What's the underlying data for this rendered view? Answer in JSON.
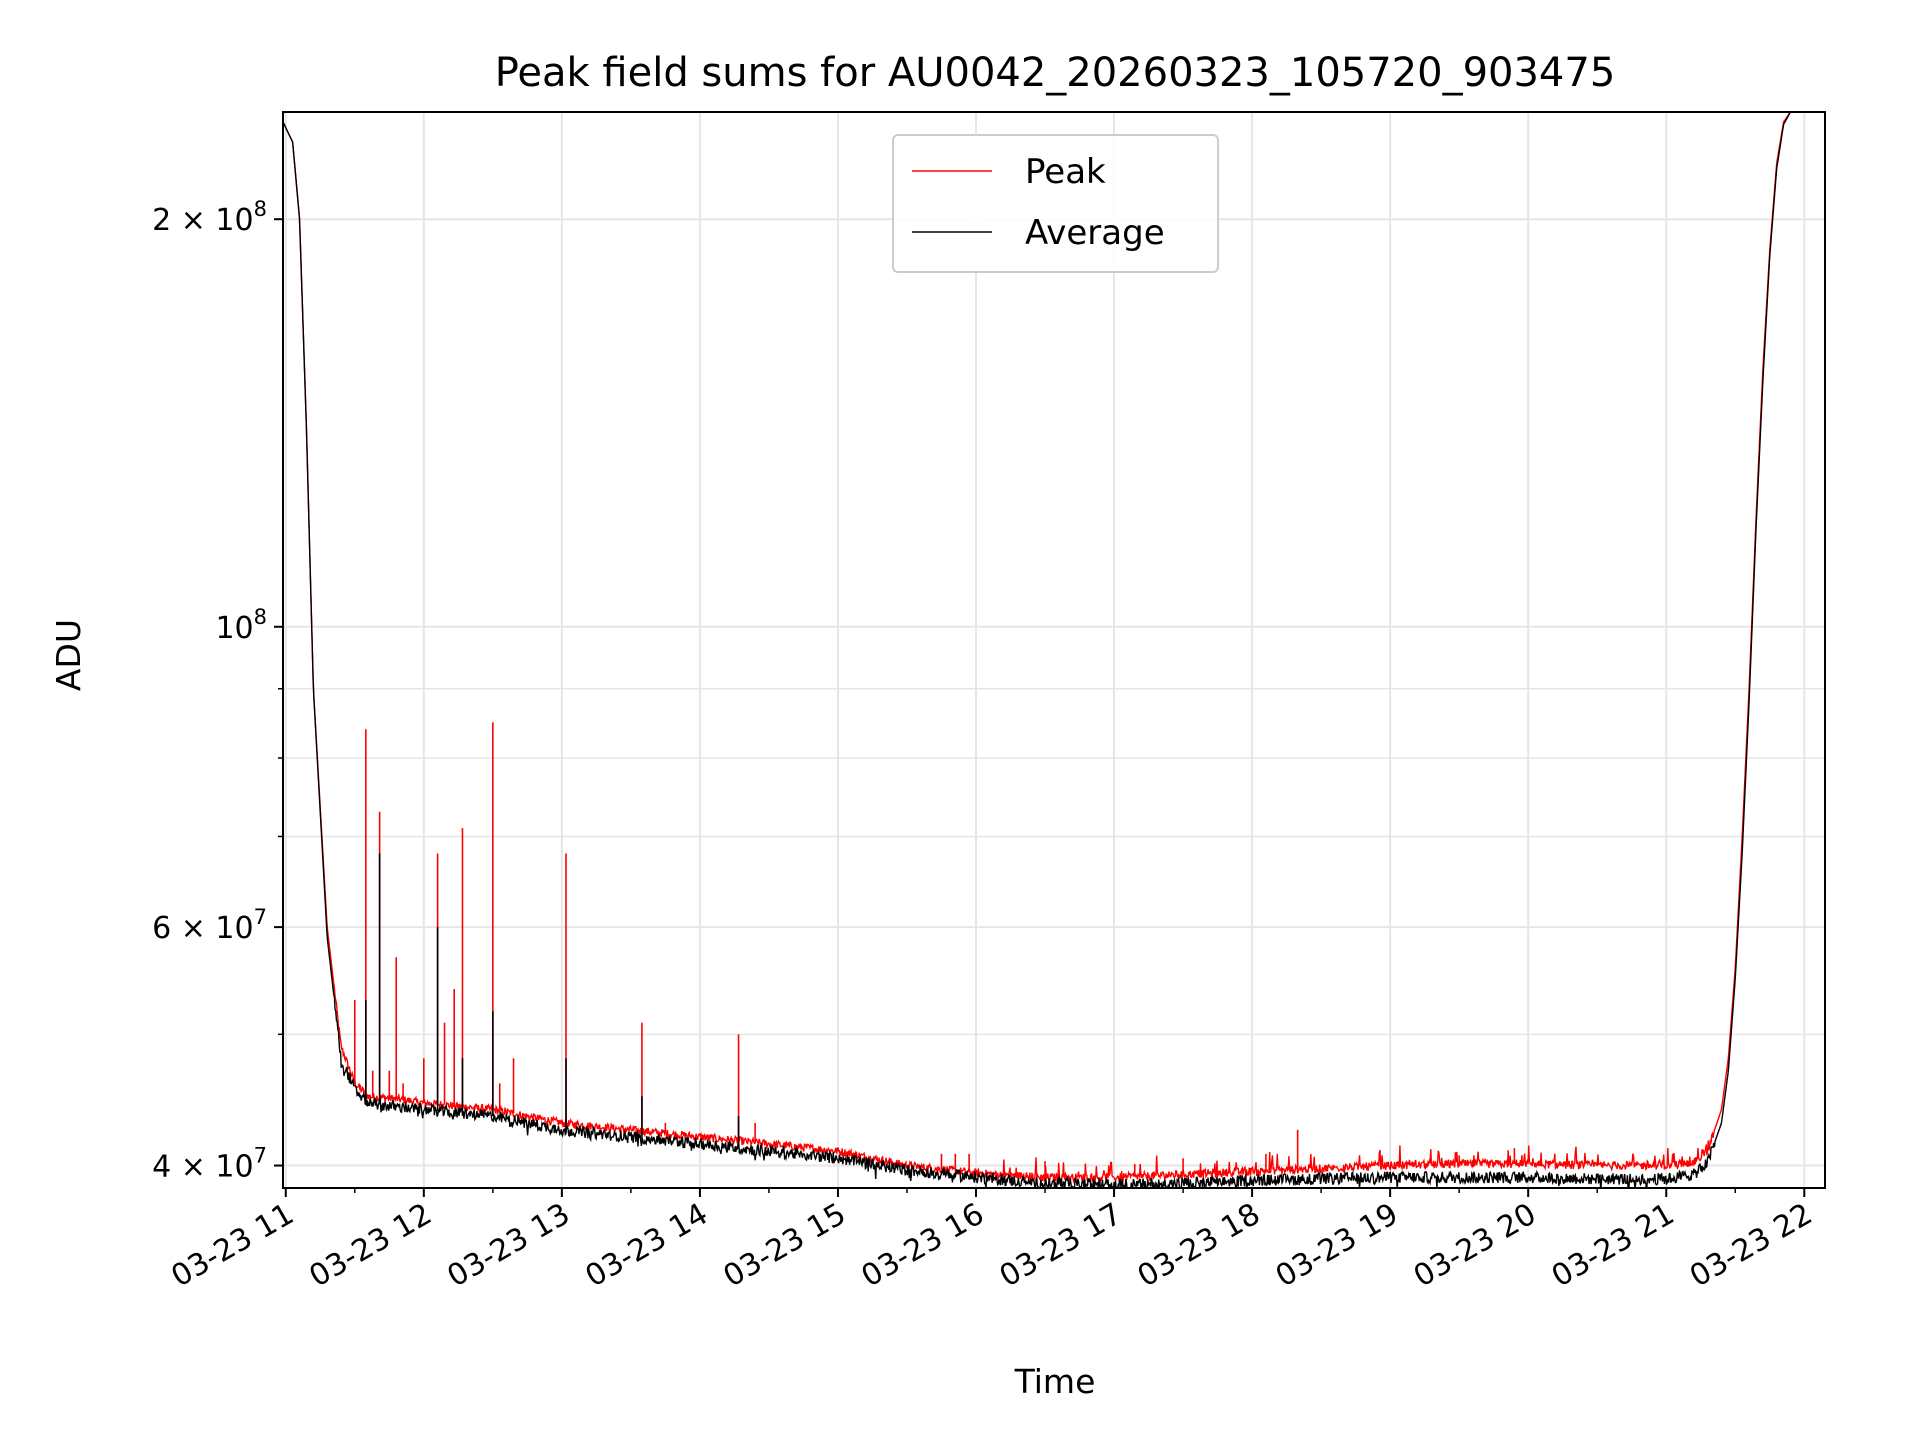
{
  "chart_data": {
    "type": "line",
    "title": "Peak field sums for AU0042_20260323_105720_903475",
    "xlabel": "Time",
    "ylabel": "ADU",
    "yscale": "log",
    "grid": true,
    "legend_position": "top-center",
    "x_ticks": [
      "03-23 11",
      "03-23 12",
      "03-23 13",
      "03-23 14",
      "03-23 15",
      "03-23 16",
      "03-23 17",
      "03-23 18",
      "03-23 19",
      "03-23 20",
      "03-23 21",
      "03-23 22"
    ],
    "y_ticks": [
      {
        "value": 40000000,
        "mantissa": "4",
        "exponent": "7"
      },
      {
        "value": 60000000,
        "mantissa": "6",
        "exponent": "7"
      },
      {
        "value": 100000000,
        "mantissa": "",
        "exponent": "8"
      },
      {
        "value": 200000000,
        "mantissa": "2",
        "exponent": "8"
      }
    ],
    "y_minor_ticks": [
      50000000,
      70000000,
      80000000,
      90000000
    ],
    "xlim_hours": [
      10.98,
      22.15
    ],
    "ylim": [
      38500000,
      240000000
    ],
    "series": [
      {
        "name": "Peak",
        "color": "#ff0000",
        "x_hours": [
          10.98,
          11.05,
          11.1,
          11.15,
          11.2,
          11.3,
          11.4,
          11.5,
          11.6,
          11.8,
          12.0,
          12.5,
          13.0,
          13.5,
          14.0,
          14.5,
          15.0,
          15.5,
          16.0,
          16.5,
          17.0,
          17.5,
          18.0,
          18.5,
          19.0,
          19.5,
          20.0,
          20.5,
          21.0,
          21.2,
          21.3,
          21.4,
          21.45,
          21.5,
          21.55,
          21.6,
          21.65,
          21.7,
          21.75,
          21.8,
          21.85,
          21.9
        ],
        "values": [
          236000000,
          228000000,
          200000000,
          140000000,
          90000000,
          60000000,
          49000000,
          46000000,
          45000000,
          44800000,
          44500000,
          44000000,
          43000000,
          42500000,
          42000000,
          41500000,
          41000000,
          40000000,
          39500000,
          39200000,
          39200000,
          39400000,
          39600000,
          39800000,
          40000000,
          40100000,
          40100000,
          40000000,
          40000000,
          40200000,
          41000000,
          44000000,
          48000000,
          56000000,
          70000000,
          90000000,
          120000000,
          155000000,
          190000000,
          220000000,
          236000000,
          240000000
        ],
        "spikes": [
          {
            "x_hours": 11.5,
            "value": 53000000
          },
          {
            "x_hours": 11.58,
            "value": 84000000
          },
          {
            "x_hours": 11.63,
            "value": 47000000
          },
          {
            "x_hours": 11.68,
            "value": 73000000
          },
          {
            "x_hours": 11.75,
            "value": 47000000
          },
          {
            "x_hours": 11.8,
            "value": 57000000
          },
          {
            "x_hours": 11.85,
            "value": 46000000
          },
          {
            "x_hours": 12.0,
            "value": 48000000
          },
          {
            "x_hours": 12.1,
            "value": 68000000
          },
          {
            "x_hours": 12.15,
            "value": 51000000
          },
          {
            "x_hours": 12.22,
            "value": 54000000
          },
          {
            "x_hours": 12.28,
            "value": 71000000
          },
          {
            "x_hours": 12.5,
            "value": 85000000
          },
          {
            "x_hours": 12.55,
            "value": 46000000
          },
          {
            "x_hours": 12.65,
            "value": 48000000
          },
          {
            "x_hours": 13.03,
            "value": 68000000
          },
          {
            "x_hours": 13.1,
            "value": 43000000
          },
          {
            "x_hours": 13.45,
            "value": 42000000
          },
          {
            "x_hours": 13.58,
            "value": 51000000
          },
          {
            "x_hours": 13.75,
            "value": 43000000
          },
          {
            "x_hours": 14.28,
            "value": 50000000
          },
          {
            "x_hours": 14.4,
            "value": 43000000
          },
          {
            "x_hours": 15.75,
            "value": 40800000
          },
          {
            "x_hours": 15.85,
            "value": 40800000
          },
          {
            "x_hours": 15.95,
            "value": 40800000
          },
          {
            "x_hours": 16.5,
            "value": 40300000
          },
          {
            "x_hours": 17.15,
            "value": 40100000
          },
          {
            "x_hours": 17.5,
            "value": 40500000
          },
          {
            "x_hours": 18.1,
            "value": 40800000
          },
          {
            "x_hours": 18.33,
            "value": 42500000
          },
          {
            "x_hours": 19.5,
            "value": 40700000
          },
          {
            "x_hours": 19.9,
            "value": 41200000
          }
        ]
      },
      {
        "name": "Average",
        "color": "#000000",
        "x_hours": [
          10.98,
          11.05,
          11.1,
          11.15,
          11.2,
          11.3,
          11.4,
          11.5,
          11.6,
          11.8,
          12.0,
          12.5,
          13.0,
          13.5,
          14.0,
          14.5,
          15.0,
          15.5,
          16.0,
          16.5,
          17.0,
          17.5,
          18.0,
          18.5,
          19.0,
          19.5,
          20.0,
          20.5,
          21.0,
          21.2,
          21.3,
          21.4,
          21.45,
          21.5,
          21.55,
          21.6,
          21.65,
          21.7,
          21.75,
          21.8,
          21.85,
          21.9
        ],
        "values": [
          236000000,
          228000000,
          200000000,
          140000000,
          90000000,
          59000000,
          48000000,
          45500000,
          44500000,
          44200000,
          44000000,
          43500000,
          42500000,
          42000000,
          41500000,
          41000000,
          40500000,
          39700000,
          39200000,
          38800000,
          38700000,
          38800000,
          39000000,
          39100000,
          39200000,
          39200000,
          39200000,
          39100000,
          39100000,
          39400000,
          40200000,
          43000000,
          47000000,
          55000000,
          68000000,
          88000000,
          118000000,
          152000000,
          188000000,
          218000000,
          235000000,
          240000000
        ],
        "spikes": [
          {
            "x_hours": 11.58,
            "value": 53000000
          },
          {
            "x_hours": 11.68,
            "value": 68000000
          },
          {
            "x_hours": 12.1,
            "value": 60000000
          },
          {
            "x_hours": 12.28,
            "value": 48000000
          },
          {
            "x_hours": 12.5,
            "value": 52000000
          },
          {
            "x_hours": 13.03,
            "value": 48000000
          },
          {
            "x_hours": 13.58,
            "value": 45000000
          },
          {
            "x_hours": 14.28,
            "value": 43500000
          }
        ]
      }
    ]
  }
}
